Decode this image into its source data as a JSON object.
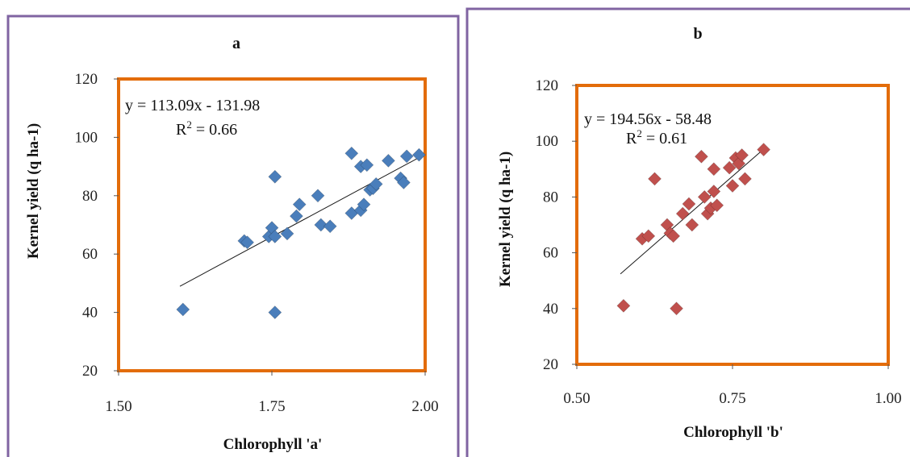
{
  "chart_data": [
    {
      "type": "scatter",
      "title": "a",
      "xlabel": "Chlorophyll 'a'",
      "ylabel": "Kernel yield (q ha-1)",
      "xlim": [
        1.5,
        2.0
      ],
      "ylim": [
        20,
        120
      ],
      "xticks": [
        "1.50",
        "1.75",
        "2.00"
      ],
      "yticks": [
        "20",
        "40",
        "60",
        "80",
        "100",
        "120"
      ],
      "marker_color": "#4a7ebb",
      "plot_border_color": "#e36c0a",
      "frame_color": "#8064a2",
      "equation": "y = 113.09x - 131.98",
      "r2_prefix": "R",
      "r2_suffix": " = 0.66",
      "trendline": {
        "slope": 113.09,
        "intercept": -131.98,
        "x_range": [
          1.6,
          1.99
        ]
      },
      "points": [
        {
          "x": 1.605,
          "y": 41
        },
        {
          "x": 1.705,
          "y": 64.5
        },
        {
          "x": 1.71,
          "y": 64
        },
        {
          "x": 1.745,
          "y": 66
        },
        {
          "x": 1.75,
          "y": 69
        },
        {
          "x": 1.755,
          "y": 66
        },
        {
          "x": 1.755,
          "y": 86.5
        },
        {
          "x": 1.755,
          "y": 40
        },
        {
          "x": 1.775,
          "y": 67
        },
        {
          "x": 1.79,
          "y": 73
        },
        {
          "x": 1.795,
          "y": 77
        },
        {
          "x": 1.825,
          "y": 80
        },
        {
          "x": 1.83,
          "y": 70
        },
        {
          "x": 1.845,
          "y": 69.5
        },
        {
          "x": 1.88,
          "y": 74
        },
        {
          "x": 1.88,
          "y": 94.5
        },
        {
          "x": 1.895,
          "y": 90
        },
        {
          "x": 1.895,
          "y": 75
        },
        {
          "x": 1.9,
          "y": 77
        },
        {
          "x": 1.905,
          "y": 90.5
        },
        {
          "x": 1.91,
          "y": 82
        },
        {
          "x": 1.915,
          "y": 82.5
        },
        {
          "x": 1.92,
          "y": 84
        },
        {
          "x": 1.94,
          "y": 92
        },
        {
          "x": 1.96,
          "y": 86
        },
        {
          "x": 1.965,
          "y": 84.5
        },
        {
          "x": 1.97,
          "y": 93.5
        },
        {
          "x": 1.99,
          "y": 94
        }
      ]
    },
    {
      "type": "scatter",
      "title": "b",
      "xlabel": "Chlorophyll 'b'",
      "ylabel": "Kernel yield (q ha-1)",
      "xlim": [
        0.5,
        1.0
      ],
      "ylim": [
        20,
        120
      ],
      "xticks": [
        "0.50",
        "0.75",
        "1.00"
      ],
      "yticks": [
        "20",
        "40",
        "60",
        "80",
        "100",
        "120"
      ],
      "marker_color": "#c0504d",
      "plot_border_color": "#e36c0a",
      "frame_color": "#8064a2",
      "equation": "y = 194.56x - 58.48",
      "r2_prefix": "R",
      "r2_suffix": " = 0.61",
      "trendline": {
        "slope": 194.56,
        "intercept": -58.48,
        "x_range": [
          0.57,
          0.8
        ]
      },
      "points": [
        {
          "x": 0.575,
          "y": 41
        },
        {
          "x": 0.605,
          "y": 65
        },
        {
          "x": 0.615,
          "y": 66
        },
        {
          "x": 0.625,
          "y": 86.5
        },
        {
          "x": 0.645,
          "y": 70
        },
        {
          "x": 0.65,
          "y": 67
        },
        {
          "x": 0.655,
          "y": 66
        },
        {
          "x": 0.66,
          "y": 40
        },
        {
          "x": 0.67,
          "y": 74
        },
        {
          "x": 0.68,
          "y": 77.5
        },
        {
          "x": 0.685,
          "y": 70
        },
        {
          "x": 0.7,
          "y": 94.5
        },
        {
          "x": 0.705,
          "y": 80
        },
        {
          "x": 0.71,
          "y": 74
        },
        {
          "x": 0.715,
          "y": 76
        },
        {
          "x": 0.72,
          "y": 82
        },
        {
          "x": 0.72,
          "y": 90
        },
        {
          "x": 0.725,
          "y": 77
        },
        {
          "x": 0.745,
          "y": 90.5
        },
        {
          "x": 0.75,
          "y": 84
        },
        {
          "x": 0.755,
          "y": 94
        },
        {
          "x": 0.76,
          "y": 92
        },
        {
          "x": 0.765,
          "y": 95
        },
        {
          "x": 0.77,
          "y": 86.5
        },
        {
          "x": 0.8,
          "y": 97
        }
      ]
    }
  ]
}
